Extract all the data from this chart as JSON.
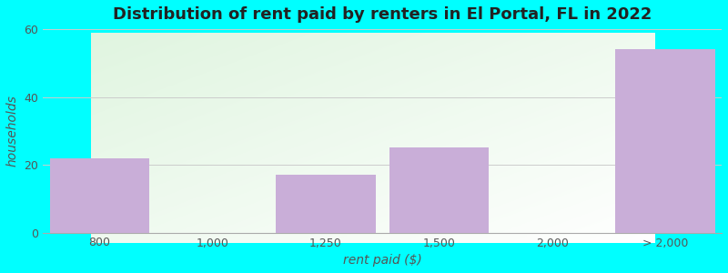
{
  "title": "Distribution of rent paid by renters in El Portal, FL in 2022",
  "categories": [
    "800",
    "1,000",
    "1,250",
    "1,500",
    "2,000",
    "> 2,000"
  ],
  "values": [
    22,
    0,
    17,
    25,
    0,
    54
  ],
  "bar_color": "#c9aed8",
  "xlabel": "rent paid ($)",
  "ylabel": "households",
  "ylim": [
    0,
    60
  ],
  "yticks": [
    0,
    20,
    40,
    60
  ],
  "outer_background": "#00ffff",
  "title_fontsize": 13,
  "axis_fontsize": 10,
  "tick_fontsize": 9,
  "bar_positions": [
    0,
    1,
    2,
    3,
    4,
    5
  ],
  "bar_widths": [
    0.92,
    0.92,
    0.92,
    0.92,
    0.92,
    0.92
  ]
}
